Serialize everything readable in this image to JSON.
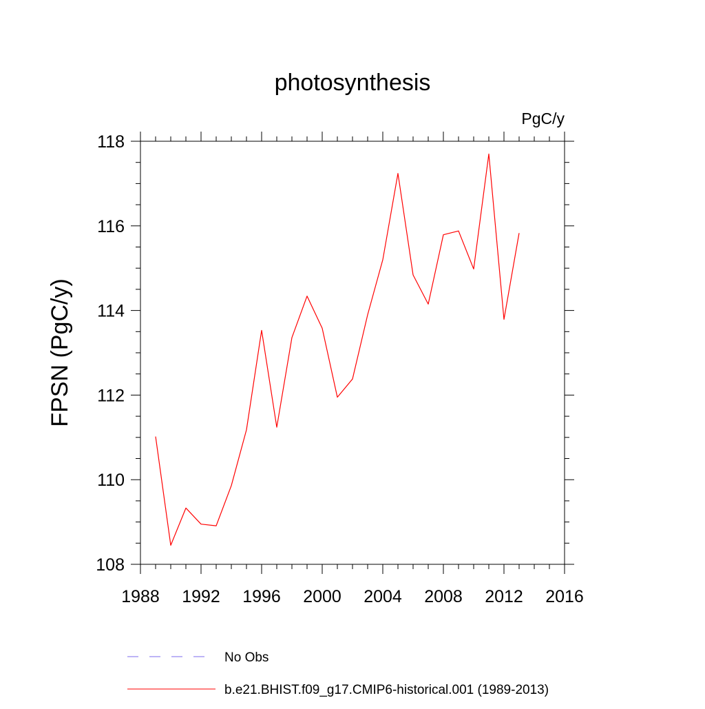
{
  "chart_data": {
    "type": "line",
    "title": "photosynthesis",
    "units": "PgC/y",
    "ylabel": "FPSN  (PgC/y)",
    "xlabel": "",
    "xlim": [
      1988,
      2016
    ],
    "ylim": [
      108,
      118
    ],
    "x_ticks": [
      1988,
      1992,
      1996,
      2000,
      2004,
      2008,
      2012,
      2016
    ],
    "y_ticks": [
      108,
      110,
      112,
      114,
      116,
      118
    ],
    "x_minor_step": 1,
    "y_minor_step": 0.5,
    "grid": false,
    "legend_position": "bottom",
    "series": [
      {
        "name": "b.e21.BHIST.f09_g17.CMIP6-historical.001 (1989-2013)",
        "color": "#ff0000",
        "style": "solid",
        "x": [
          1989,
          1990,
          1991,
          1992,
          1993,
          1994,
          1995,
          1996,
          1997,
          1998,
          1999,
          2000,
          2001,
          2002,
          2003,
          2004,
          2005,
          2006,
          2007,
          2008,
          2009,
          2010,
          2011,
          2012,
          2013
        ],
        "values": [
          111.02,
          108.45,
          109.33,
          108.95,
          108.91,
          109.86,
          111.18,
          113.53,
          111.24,
          113.36,
          114.34,
          113.58,
          111.95,
          112.38,
          113.9,
          115.2,
          117.24,
          114.84,
          114.15,
          115.79,
          115.88,
          114.98,
          117.7,
          113.79,
          115.83
        ]
      }
    ],
    "legend": [
      {
        "label": "No Obs",
        "color": "#7b68ee",
        "style": "dashed"
      },
      {
        "label": "b.e21.BHIST.f09_g17.CMIP6-historical.001 (1989-2013)",
        "color": "#ff0000",
        "style": "solid"
      }
    ]
  }
}
